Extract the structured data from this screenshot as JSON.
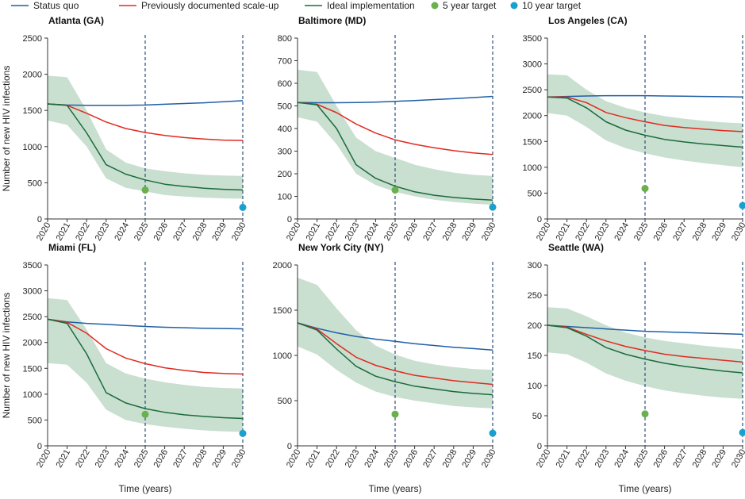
{
  "legend": [
    {
      "label": "Status quo",
      "color": "#1f5fa6",
      "kind": "line"
    },
    {
      "label": "Previously documented scale-up",
      "color": "#e02b20",
      "kind": "line"
    },
    {
      "label": "Ideal implementation",
      "color": "#1a6b3c",
      "kind": "line"
    },
    {
      "label": "5 year target",
      "color": "#6ab04c",
      "kind": "dot"
    },
    {
      "label": "10 year target",
      "color": "#1aa0d0",
      "kind": "dot"
    }
  ],
  "colors": {
    "band": "#c9dfd0",
    "vline": "#2d4f7c",
    "axis": "#333333"
  },
  "ylabel": "Number of new HIV infections",
  "xlabel": "Time (years)",
  "chart_data": [
    {
      "type": "line",
      "title": "Atlanta (GA)",
      "x": [
        2020,
        2021,
        2022,
        2023,
        2024,
        2025,
        2026,
        2027,
        2028,
        2029,
        2030
      ],
      "ylim": [
        0,
        2500
      ],
      "yticks": [
        0,
        500,
        1000,
        1500,
        2000,
        2500
      ],
      "series": [
        {
          "name": "Status quo",
          "values": [
            1590,
            1575,
            1570,
            1570,
            1570,
            1575,
            1585,
            1595,
            1605,
            1620,
            1635
          ]
        },
        {
          "name": "Previously documented scale-up",
          "values": [
            1590,
            1570,
            1460,
            1340,
            1250,
            1195,
            1155,
            1125,
            1105,
            1090,
            1085
          ]
        },
        {
          "name": "Ideal implementation",
          "values": [
            1590,
            1570,
            1190,
            750,
            620,
            540,
            480,
            450,
            425,
            410,
            400
          ]
        }
      ],
      "band_upper": [
        1980,
        1960,
        1500,
        960,
        780,
        700,
        660,
        630,
        610,
        600,
        595
      ],
      "band_lower": [
        1360,
        1300,
        1000,
        560,
        430,
        380,
        330,
        310,
        295,
        285,
        280
      ],
      "target_5yr": 400,
      "target_10yr": 160
    },
    {
      "type": "line",
      "title": "Baltimore (MD)",
      "x": [
        2020,
        2021,
        2022,
        2023,
        2024,
        2025,
        2026,
        2027,
        2028,
        2029,
        2030
      ],
      "ylim": [
        0,
        800
      ],
      "yticks": [
        0,
        100,
        200,
        300,
        400,
        500,
        600,
        700,
        800
      ],
      "series": [
        {
          "name": "Status quo",
          "values": [
            515,
            514,
            514,
            515,
            517,
            520,
            524,
            528,
            532,
            537,
            542
          ]
        },
        {
          "name": "Previously documented scale-up",
          "values": [
            515,
            507,
            470,
            420,
            380,
            350,
            330,
            315,
            302,
            292,
            285
          ]
        },
        {
          "name": "Ideal implementation",
          "values": [
            515,
            505,
            400,
            240,
            180,
            145,
            120,
            105,
            95,
            88,
            83
          ]
        }
      ],
      "band_upper": [
        660,
        650,
        500,
        360,
        300,
        270,
        240,
        220,
        205,
        195,
        190
      ],
      "band_lower": [
        450,
        430,
        330,
        200,
        150,
        120,
        100,
        85,
        75,
        68,
        62
      ],
      "target_5yr": 128,
      "target_10yr": 52
    },
    {
      "type": "line",
      "title": "Los Angeles (CA)",
      "x": [
        2020,
        2021,
        2022,
        2023,
        2024,
        2025,
        2026,
        2027,
        2028,
        2029,
        2030
      ],
      "ylim": [
        0,
        3500
      ],
      "yticks": [
        0,
        500,
        1000,
        1500,
        2000,
        2500,
        3000,
        3500
      ],
      "series": [
        {
          "name": "Status quo",
          "values": [
            2360,
            2370,
            2380,
            2385,
            2385,
            2385,
            2380,
            2375,
            2370,
            2365,
            2360
          ]
        },
        {
          "name": "Previously documented scale-up",
          "values": [
            2360,
            2360,
            2250,
            2060,
            1960,
            1880,
            1810,
            1770,
            1740,
            1710,
            1690
          ]
        },
        {
          "name": "Ideal implementation",
          "values": [
            2360,
            2340,
            2150,
            1880,
            1720,
            1620,
            1540,
            1490,
            1450,
            1420,
            1390
          ]
        }
      ],
      "band_upper": [
        2800,
        2780,
        2500,
        2280,
        2150,
        2060,
        1990,
        1940,
        1900,
        1870,
        1850
      ],
      "band_lower": [
        2050,
        2000,
        1780,
        1520,
        1370,
        1270,
        1190,
        1130,
        1080,
        1040,
        1000
      ],
      "target_5yr": 590,
      "target_10yr": 260
    },
    {
      "type": "line",
      "title": "Miami (FL)",
      "x": [
        2020,
        2021,
        2022,
        2023,
        2024,
        2025,
        2026,
        2027,
        2028,
        2029,
        2030
      ],
      "ylim": [
        0,
        3500
      ],
      "yticks": [
        0,
        500,
        1000,
        1500,
        2000,
        2500,
        3000,
        3500
      ],
      "series": [
        {
          "name": "Status quo",
          "values": [
            2450,
            2400,
            2370,
            2350,
            2330,
            2310,
            2295,
            2285,
            2275,
            2270,
            2265
          ]
        },
        {
          "name": "Previously documented scale-up",
          "values": [
            2450,
            2390,
            2180,
            1880,
            1700,
            1590,
            1510,
            1460,
            1420,
            1400,
            1390
          ]
        },
        {
          "name": "Ideal implementation",
          "values": [
            2450,
            2370,
            1780,
            1030,
            830,
            720,
            650,
            600,
            570,
            545,
            530
          ]
        }
      ],
      "band_upper": [
        2860,
        2820,
        2250,
        1600,
        1400,
        1300,
        1230,
        1180,
        1140,
        1120,
        1110
      ],
      "band_lower": [
        1600,
        1570,
        1220,
        700,
        500,
        420,
        370,
        330,
        300,
        280,
        270
      ],
      "target_5yr": 610,
      "target_10yr": 240
    },
    {
      "type": "line",
      "title": "New York City (NY)",
      "x": [
        2020,
        2021,
        2022,
        2023,
        2024,
        2025,
        2026,
        2027,
        2028,
        2029,
        2030
      ],
      "ylim": [
        0,
        2000
      ],
      "yticks": [
        0,
        500,
        1000,
        1500,
        2000
      ],
      "series": [
        {
          "name": "Status quo",
          "values": [
            1360,
            1300,
            1250,
            1210,
            1180,
            1155,
            1130,
            1110,
            1090,
            1075,
            1060
          ]
        },
        {
          "name": "Previously documented scale-up",
          "values": [
            1360,
            1290,
            1130,
            980,
            890,
            830,
            780,
            750,
            720,
            700,
            680
          ]
        },
        {
          "name": "Ideal implementation",
          "values": [
            1360,
            1280,
            1070,
            880,
            770,
            710,
            660,
            630,
            600,
            580,
            565
          ]
        }
      ],
      "band_upper": [
        1860,
        1780,
        1520,
        1280,
        1110,
        1010,
        940,
        900,
        870,
        850,
        840
      ],
      "band_lower": [
        1100,
        1010,
        840,
        700,
        600,
        540,
        500,
        470,
        440,
        425,
        415
      ],
      "target_5yr": 350,
      "target_10yr": 140
    },
    {
      "type": "line",
      "title": "Seattle (WA)",
      "x": [
        2020,
        2021,
        2022,
        2023,
        2024,
        2025,
        2026,
        2027,
        2028,
        2029,
        2030
      ],
      "ylim": [
        0,
        300
      ],
      "yticks": [
        0,
        50,
        100,
        150,
        200,
        250,
        300
      ],
      "series": [
        {
          "name": "Status quo",
          "values": [
            200,
            198,
            196,
            194,
            192,
            190,
            189,
            188,
            187,
            186,
            185
          ]
        },
        {
          "name": "Previously documented scale-up",
          "values": [
            200,
            197,
            185,
            174,
            165,
            158,
            152,
            148,
            145,
            142,
            139
          ]
        },
        {
          "name": "Ideal implementation",
          "values": [
            200,
            196,
            182,
            163,
            152,
            144,
            137,
            132,
            128,
            124,
            121
          ]
        }
      ],
      "band_upper": [
        230,
        228,
        215,
        200,
        188,
        180,
        174,
        170,
        166,
        163,
        160
      ],
      "band_lower": [
        155,
        152,
        138,
        120,
        108,
        99,
        92,
        87,
        83,
        80,
        78
      ],
      "target_5yr": 53,
      "target_10yr": 22
    }
  ]
}
